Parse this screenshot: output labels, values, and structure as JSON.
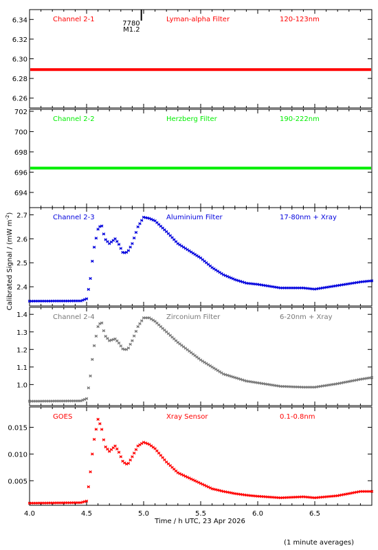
{
  "chart_data": {
    "type": "scatter",
    "xlabel": "Time / h UTC, 23 Apr 2026",
    "ylabel": "Calibrated Signal / (mW m",
    "ylabel_sup": "-2",
    "ylabel_end": ")",
    "footnote": "(1 minute averages)",
    "xlim": [
      4.0,
      7.0
    ],
    "x_ticks": [
      "4.0",
      "4.5",
      "5.0",
      "5.5",
      "6.0",
      "6.5"
    ],
    "x_tick_values": [
      4.0,
      4.5,
      5.0,
      5.5,
      6.0,
      6.5
    ],
    "flare_marker": {
      "x": 4.98,
      "label1": "7780",
      "label2": "M1.2"
    },
    "panels": [
      {
        "channel": "Channel 2-1",
        "filter": "Lyman-alpha Filter",
        "band": "120-123nm",
        "color": "#ff0000",
        "ylim": [
          6.25,
          6.35
        ],
        "y_ticks": [
          "6.26",
          "6.28",
          "6.30",
          "6.32",
          "6.34"
        ],
        "y_tick_values": [
          6.26,
          6.28,
          6.3,
          6.32,
          6.34
        ],
        "curve": [
          [
            4.0,
            6.289
          ],
          [
            7.0,
            6.289
          ]
        ]
      },
      {
        "channel": "Channel 2-2",
        "filter": "Herzberg Filter",
        "band": "190-222nm",
        "color": "#00ee00",
        "ylim": [
          692.5,
          702.2
        ],
        "y_ticks": [
          "694",
          "696",
          "698",
          "700",
          "702"
        ],
        "y_tick_values": [
          694,
          696,
          698,
          700,
          702
        ],
        "curve": [
          [
            4.0,
            696.4
          ],
          [
            7.0,
            696.4
          ]
        ]
      },
      {
        "channel": "Channel 2-3",
        "filter": "Aluminium Filter",
        "band": "17-80nm + Xray",
        "color": "#0000dd",
        "ylim": [
          2.32,
          2.73
        ],
        "y_ticks": [
          "2.4",
          "2.5",
          "2.6",
          "2.7"
        ],
        "y_tick_values": [
          2.4,
          2.5,
          2.6,
          2.7
        ],
        "curve": [
          [
            4.0,
            2.34
          ],
          [
            4.45,
            2.341
          ],
          [
            4.5,
            2.35
          ],
          [
            4.53,
            2.42
          ],
          [
            4.56,
            2.55
          ],
          [
            4.6,
            2.64
          ],
          [
            4.63,
            2.66
          ],
          [
            4.66,
            2.6
          ],
          [
            4.7,
            2.58
          ],
          [
            4.75,
            2.6
          ],
          [
            4.78,
            2.58
          ],
          [
            4.82,
            2.54
          ],
          [
            4.86,
            2.545
          ],
          [
            4.9,
            2.58
          ],
          [
            4.95,
            2.65
          ],
          [
            5.0,
            2.69
          ],
          [
            5.05,
            2.685
          ],
          [
            5.1,
            2.675
          ],
          [
            5.2,
            2.63
          ],
          [
            5.3,
            2.58
          ],
          [
            5.4,
            2.55
          ],
          [
            5.5,
            2.52
          ],
          [
            5.6,
            2.48
          ],
          [
            5.7,
            2.45
          ],
          [
            5.8,
            2.43
          ],
          [
            5.9,
            2.415
          ],
          [
            6.0,
            2.41
          ],
          [
            6.2,
            2.395
          ],
          [
            6.4,
            2.395
          ],
          [
            6.5,
            2.39
          ],
          [
            6.7,
            2.405
          ],
          [
            6.9,
            2.42
          ],
          [
            7.0,
            2.425
          ]
        ]
      },
      {
        "channel": "Channel 2-4",
        "filter": "Zirconium Filter",
        "band": "6-20nm + Xray",
        "color": "#777777",
        "ylim": [
          0.88,
          1.44
        ],
        "y_ticks": [
          "1.0",
          "1.1",
          "1.2",
          "1.3",
          "1.4"
        ],
        "y_tick_values": [
          1.0,
          1.1,
          1.2,
          1.3,
          1.4
        ],
        "curve": [
          [
            4.0,
            0.905
          ],
          [
            4.45,
            0.907
          ],
          [
            4.5,
            0.92
          ],
          [
            4.53,
            1.03
          ],
          [
            4.56,
            1.2
          ],
          [
            4.6,
            1.33
          ],
          [
            4.63,
            1.36
          ],
          [
            4.66,
            1.28
          ],
          [
            4.7,
            1.25
          ],
          [
            4.75,
            1.26
          ],
          [
            4.78,
            1.24
          ],
          [
            4.82,
            1.2
          ],
          [
            4.86,
            1.2
          ],
          [
            4.9,
            1.25
          ],
          [
            4.95,
            1.33
          ],
          [
            5.0,
            1.38
          ],
          [
            5.05,
            1.38
          ],
          [
            5.1,
            1.36
          ],
          [
            5.2,
            1.3
          ],
          [
            5.3,
            1.24
          ],
          [
            5.4,
            1.19
          ],
          [
            5.5,
            1.14
          ],
          [
            5.6,
            1.1
          ],
          [
            5.7,
            1.06
          ],
          [
            5.8,
            1.04
          ],
          [
            5.9,
            1.02
          ],
          [
            6.0,
            1.01
          ],
          [
            6.2,
            0.99
          ],
          [
            6.4,
            0.985
          ],
          [
            6.5,
            0.985
          ],
          [
            6.7,
            1.005
          ],
          [
            6.9,
            1.03
          ],
          [
            7.0,
            1.04
          ]
        ]
      },
      {
        "channel": "GOES",
        "filter": "Xray Sensor",
        "band": "0.1-0.8nm",
        "color": "#ff0000",
        "ylim": [
          0.0004,
          0.0188
        ],
        "y_ticks": [
          "0.005",
          "0.010",
          "0.015"
        ],
        "y_tick_values": [
          0.005,
          0.01,
          0.015
        ],
        "curve": [
          [
            4.0,
            0.0008
          ],
          [
            4.45,
            0.0009
          ],
          [
            4.5,
            0.0012
          ],
          [
            4.53,
            0.006
          ],
          [
            4.56,
            0.012
          ],
          [
            4.6,
            0.0165
          ],
          [
            4.63,
            0.015
          ],
          [
            4.66,
            0.0115
          ],
          [
            4.7,
            0.0105
          ],
          [
            4.75,
            0.0115
          ],
          [
            4.78,
            0.0105
          ],
          [
            4.82,
            0.0085
          ],
          [
            4.86,
            0.008
          ],
          [
            4.9,
            0.0095
          ],
          [
            4.95,
            0.0115
          ],
          [
            5.0,
            0.0122
          ],
          [
            5.05,
            0.0118
          ],
          [
            5.1,
            0.011
          ],
          [
            5.2,
            0.0085
          ],
          [
            5.3,
            0.0065
          ],
          [
            5.4,
            0.0055
          ],
          [
            5.5,
            0.0045
          ],
          [
            5.6,
            0.0035
          ],
          [
            5.7,
            0.003
          ],
          [
            5.8,
            0.0026
          ],
          [
            5.9,
            0.0023
          ],
          [
            6.0,
            0.0021
          ],
          [
            6.2,
            0.0018
          ],
          [
            6.4,
            0.002
          ],
          [
            6.5,
            0.0018
          ],
          [
            6.7,
            0.0022
          ],
          [
            6.9,
            0.003
          ],
          [
            7.0,
            0.003
          ]
        ]
      }
    ]
  }
}
